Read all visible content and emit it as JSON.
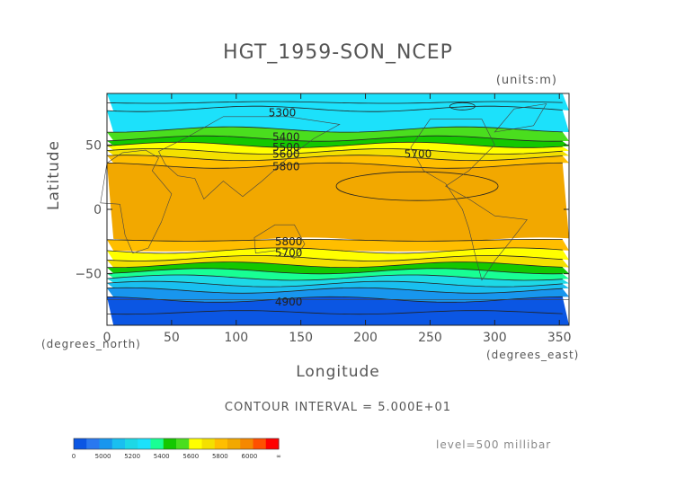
{
  "title": "HGT_1959-SON_NCEP",
  "units_label": "(units:m)",
  "xlabel": "Longitude",
  "ylabel": "Latitude",
  "xunit_label": "(degrees_east)",
  "yunit_label": "(degrees_north)",
  "contour_interval_text": "CONTOUR INTERVAL = 5.000E+01",
  "level_text": "level=500 millibar",
  "chart_data": {
    "type": "heatmap",
    "variable": "geopotential height",
    "xlim": [
      0,
      357.5
    ],
    "ylim": [
      -90,
      90
    ],
    "xticks": [
      0,
      50,
      100,
      150,
      200,
      250,
      300,
      350
    ],
    "yticks": [
      -50,
      0,
      50
    ],
    "contour_interval": 50,
    "contour_labels": [
      {
        "text": "5300",
        "x": 125,
        "y": 75
      },
      {
        "text": "5400",
        "x": 128,
        "y": 56
      },
      {
        "text": "5500",
        "x": 128,
        "y": 48
      },
      {
        "text": "5600",
        "x": 128,
        "y": 43
      },
      {
        "text": "5800",
        "x": 128,
        "y": 33
      },
      {
        "text": "5700",
        "x": 230,
        "y": 43
      },
      {
        "text": "5800",
        "x": 130,
        "y": -25
      },
      {
        "text": "5700",
        "x": 130,
        "y": -34
      },
      {
        "text": "4900",
        "x": 130,
        "y": -72
      }
    ],
    "colorbar": {
      "ticks": [
        "0",
        "5000",
        "5200",
        "5400",
        "5600",
        "5800",
        "6000",
        "∞"
      ],
      "colors": [
        "#0b56e3",
        "#2a78ef",
        "#1896ee",
        "#19bff0",
        "#1dd8e6",
        "#1ce1fb",
        "#18ff94",
        "#14c800",
        "#4ade1e",
        "#ffff00",
        "#f4e000",
        "#ffbe00",
        "#f2a800",
        "#f58800",
        "#ff5000",
        "#ff0000"
      ]
    },
    "bands": [
      {
        "lat_top": 90,
        "lat_bottom": 78,
        "color": "#1ce1fb"
      },
      {
        "lat_top": 78,
        "lat_bottom": 62,
        "color": "#1ce1fb"
      },
      {
        "lat_top": 62,
        "lat_bottom": 55,
        "color": "#4ade1e"
      },
      {
        "lat_top": 55,
        "lat_bottom": 50,
        "color": "#14c800"
      },
      {
        "lat_top": 50,
        "lat_bottom": 45,
        "color": "#ffff00"
      },
      {
        "lat_top": 45,
        "lat_bottom": 40,
        "color": "#f4e000"
      },
      {
        "lat_top": 40,
        "lat_bottom": 34,
        "color": "#ffbe00"
      },
      {
        "lat_top": 34,
        "lat_bottom": -24,
        "color": "#f2a800"
      },
      {
        "lat_top": -24,
        "lat_bottom": -32,
        "color": "#ffbe00"
      },
      {
        "lat_top": -32,
        "lat_bottom": -38,
        "color": "#ffff00"
      },
      {
        "lat_top": -38,
        "lat_bottom": -43,
        "color": "#f4e000"
      },
      {
        "lat_top": -43,
        "lat_bottom": -48,
        "color": "#14c800"
      },
      {
        "lat_top": -48,
        "lat_bottom": -53,
        "color": "#18ff94"
      },
      {
        "lat_top": -53,
        "lat_bottom": -58,
        "color": "#1dd8e6"
      },
      {
        "lat_top": -58,
        "lat_bottom": -63,
        "color": "#19bff0"
      },
      {
        "lat_top": -63,
        "lat_bottom": -70,
        "color": "#1896ee"
      },
      {
        "lat_top": -70,
        "lat_bottom": -90,
        "color": "#0b56e3"
      }
    ]
  }
}
